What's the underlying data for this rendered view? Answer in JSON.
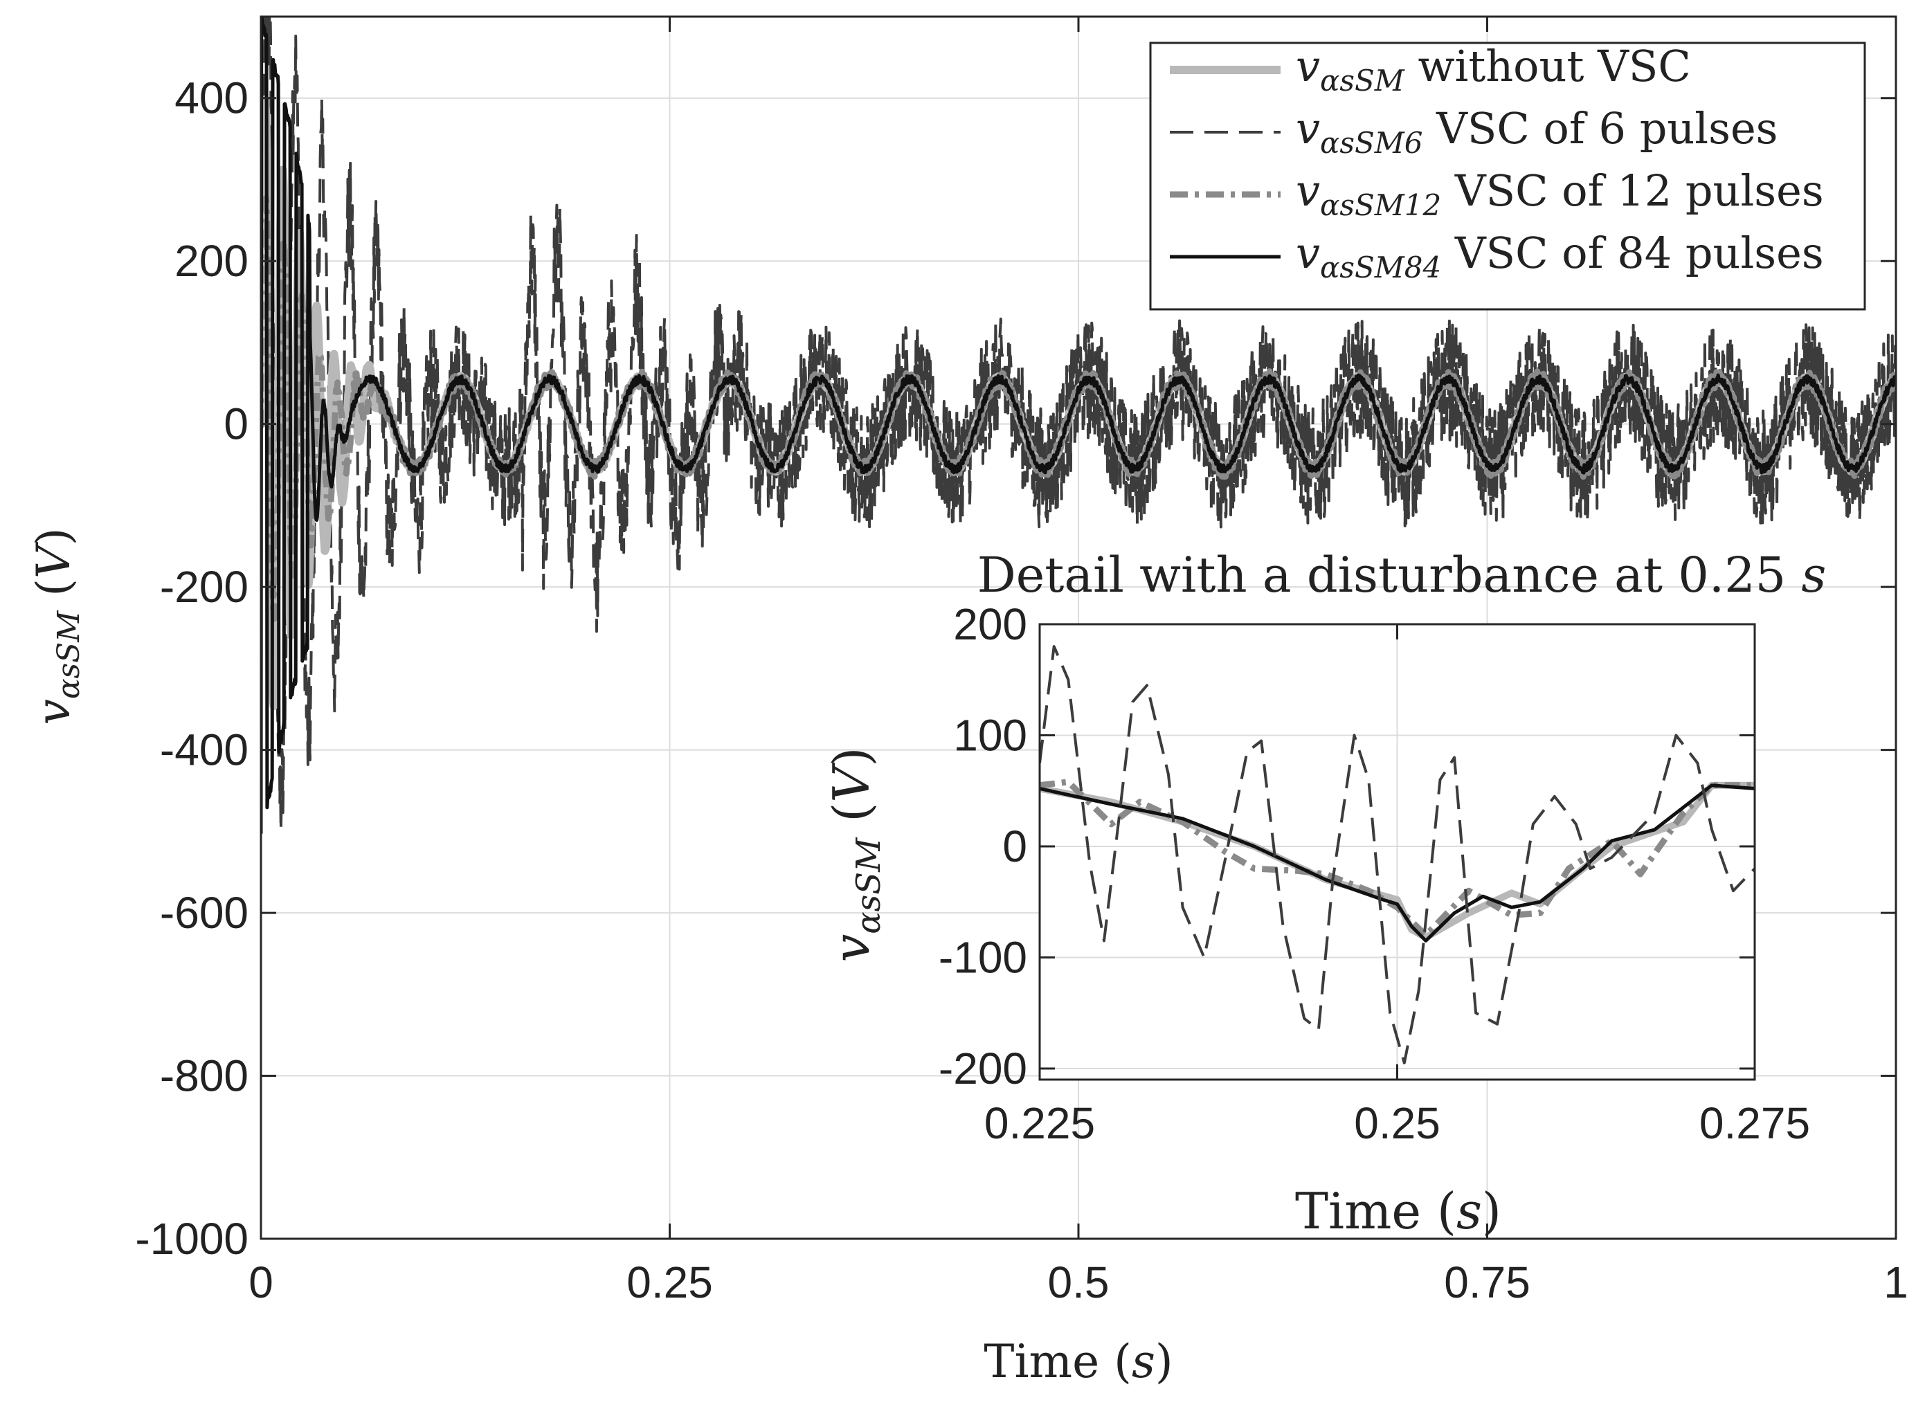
{
  "chart_data": [
    {
      "type": "line",
      "id": "main",
      "title": "",
      "xlabel": {
        "text": "Time",
        "unit": "s"
      },
      "ylabel": {
        "symbol": "v",
        "subscript": "αsSM",
        "unit": "V"
      },
      "xlim": [
        0,
        1
      ],
      "ylim": [
        -1000,
        500
      ],
      "xticks": [
        0,
        0.25,
        0.5,
        0.75,
        1
      ],
      "xtick_labels": [
        "0",
        "0.25",
        "0.5",
        "0.75",
        "1"
      ],
      "yticks": [
        -1000,
        -800,
        -600,
        -400,
        -200,
        0,
        200,
        400
      ],
      "ytick_labels": [
        "-1000",
        "-800",
        "-600",
        "-400",
        "-200",
        "0",
        "200",
        "400"
      ],
      "grid": true,
      "legend_position": "top-right",
      "steady_state": {
        "frequency_hz": 18.2,
        "amplitude_v": 55,
        "start_s": 0.1
      },
      "series": [
        {
          "key": "nosvc",
          "sub": "αsSM",
          "label": " without VSC",
          "color": "#b8b8b8",
          "dash": "solid",
          "transient": {
            "end_s": 0.09,
            "amplitude_v": 420,
            "freq_hz": 95
          },
          "noise_v": 4
        },
        {
          "key": "vsc6",
          "sub": "αsSM6",
          "label": " VSC of 6 pulses",
          "color": "#3c3c3c",
          "dash": "long-dash",
          "transient": {
            "end_s": 0.16,
            "amplitude_v": 500,
            "freq_hz": 60
          },
          "noise_v": 75
        },
        {
          "key": "vsc12",
          "sub": "αsSM12",
          "label": " VSC of 12 pulses",
          "color": "#8a8a8a",
          "dash": "dash-dot",
          "transient": {
            "end_s": 0.09,
            "amplitude_v": 300,
            "freq_hz": 90
          },
          "noise_v": 10
        },
        {
          "key": "vsc84",
          "sub": "αsSM84",
          "label": " VSC of 84 pulses",
          "color": "#111111",
          "dash": "solid",
          "transient": {
            "end_s": 0.06,
            "amplitude_v": 500,
            "freq_hz": 110
          },
          "noise_v": 5
        }
      ]
    },
    {
      "type": "line",
      "id": "inset",
      "title": {
        "text": "Detail with a disturbance at 0.25 ",
        "unit": "s"
      },
      "xlabel": {
        "text": "Time",
        "unit": "s"
      },
      "ylabel": {
        "symbol": "v",
        "subscript": "αsSM",
        "unit": "V"
      },
      "xlim": [
        0.225,
        0.275
      ],
      "ylim": [
        -210,
        200
      ],
      "xticks": [
        0.225,
        0.25,
        0.275
      ],
      "xtick_labels": [
        "0.225",
        "0.25",
        "0.275"
      ],
      "yticks": [
        -200,
        -100,
        0,
        100,
        200
      ],
      "ytick_labels": [
        "-200",
        "-100",
        "0",
        "100",
        "200"
      ],
      "grid": true,
      "series": [
        {
          "key": "nosvc",
          "color": "#b8b8b8",
          "x": [
            0.225,
            0.23,
            0.235,
            0.24,
            0.245,
            0.25,
            0.251,
            0.252,
            0.255,
            0.258,
            0.26,
            0.263,
            0.265,
            0.27,
            0.272,
            0.275
          ],
          "y": [
            52,
            40,
            22,
            0,
            -30,
            -48,
            -75,
            -82,
            -60,
            -42,
            -52,
            -20,
            0,
            22,
            55,
            55
          ]
        },
        {
          "key": "vsc12",
          "color": "#8a8a8a",
          "x": [
            0.225,
            0.227,
            0.23,
            0.232,
            0.235,
            0.238,
            0.24,
            0.243,
            0.245,
            0.248,
            0.25,
            0.252,
            0.255,
            0.258,
            0.26,
            0.262,
            0.265,
            0.267,
            0.27,
            0.272,
            0.275
          ],
          "y": [
            55,
            58,
            20,
            40,
            22,
            -5,
            -20,
            -22,
            -25,
            -40,
            -55,
            -80,
            -40,
            -62,
            -60,
            -20,
            5,
            -25,
            30,
            55,
            55
          ]
        },
        {
          "key": "vsc84",
          "color": "#111111",
          "x": [
            0.225,
            0.23,
            0.235,
            0.24,
            0.245,
            0.249,
            0.25,
            0.251,
            0.252,
            0.254,
            0.256,
            0.258,
            0.26,
            0.263,
            0.265,
            0.268,
            0.27,
            0.272,
            0.275
          ],
          "y": [
            52,
            38,
            25,
            0,
            -30,
            -48,
            -52,
            -72,
            -85,
            -60,
            -45,
            -55,
            -50,
            -20,
            5,
            15,
            35,
            55,
            52
          ]
        },
        {
          "key": "vsc6",
          "color": "#3c3c3c",
          "x": [
            0.225,
            0.226,
            0.227,
            0.2285,
            0.2295,
            0.2305,
            0.2315,
            0.2325,
            0.234,
            0.235,
            0.2365,
            0.238,
            0.2395,
            0.2405,
            0.242,
            0.2435,
            0.2445,
            0.2455,
            0.247,
            0.248,
            0.2495,
            0.2505,
            0.2515,
            0.253,
            0.254,
            0.2555,
            0.257,
            0.2585,
            0.2595,
            0.261,
            0.2625,
            0.2635,
            0.265,
            0.2665,
            0.268,
            0.2695,
            0.271,
            0.272,
            0.2735,
            0.275
          ],
          "y": [
            75,
            180,
            150,
            -15,
            -85,
            20,
            130,
            145,
            65,
            -55,
            -100,
            -10,
            85,
            95,
            -70,
            -155,
            -165,
            -30,
            100,
            60,
            -150,
            -195,
            -130,
            60,
            80,
            -150,
            -160,
            -60,
            20,
            45,
            20,
            -20,
            -10,
            10,
            30,
            100,
            75,
            15,
            -40,
            -20
          ]
        }
      ]
    }
  ],
  "legend": {
    "symbol": "v"
  }
}
